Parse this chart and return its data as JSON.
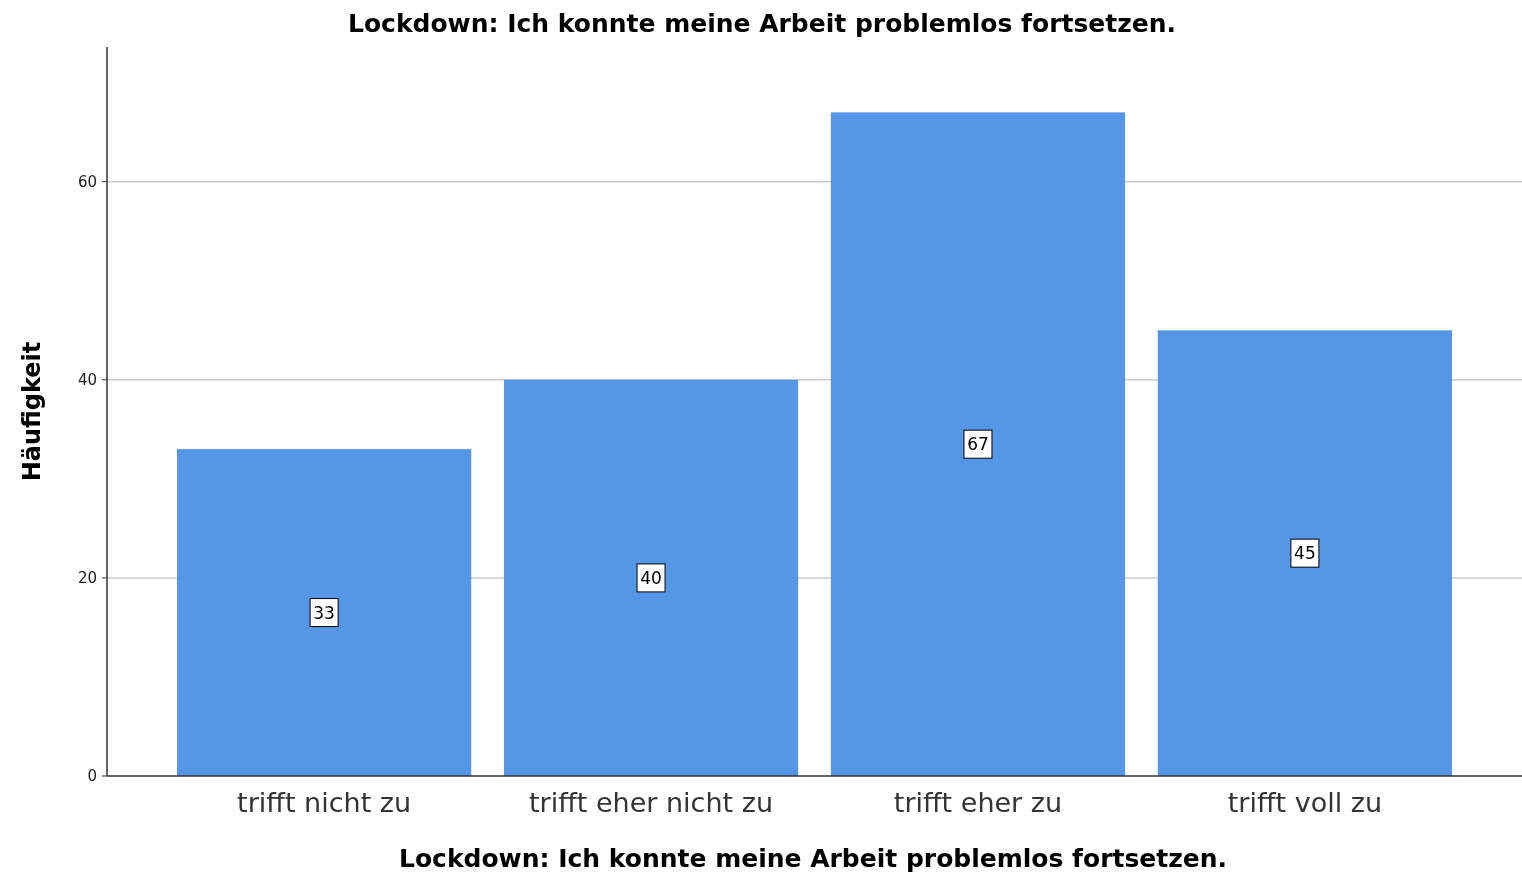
{
  "chart_data": {
    "type": "bar",
    "title": "Lockdown: Ich konnte meine Arbeit problemlos fortsetzen.",
    "xlabel": "Lockdown: Ich konnte meine Arbeit problemlos fortsetzen.",
    "ylabel": "Häufigkeit",
    "categories": [
      "trifft nicht zu",
      "trifft eher nicht zu",
      "trifft eher zu",
      "trifft voll zu"
    ],
    "values": [
      33,
      40,
      67,
      45
    ],
    "color": "#5596e6",
    "ylim": [
      0,
      73.6
    ],
    "yticks": [
      0,
      20,
      40,
      60
    ],
    "grid": "y",
    "data_labels": true
  }
}
